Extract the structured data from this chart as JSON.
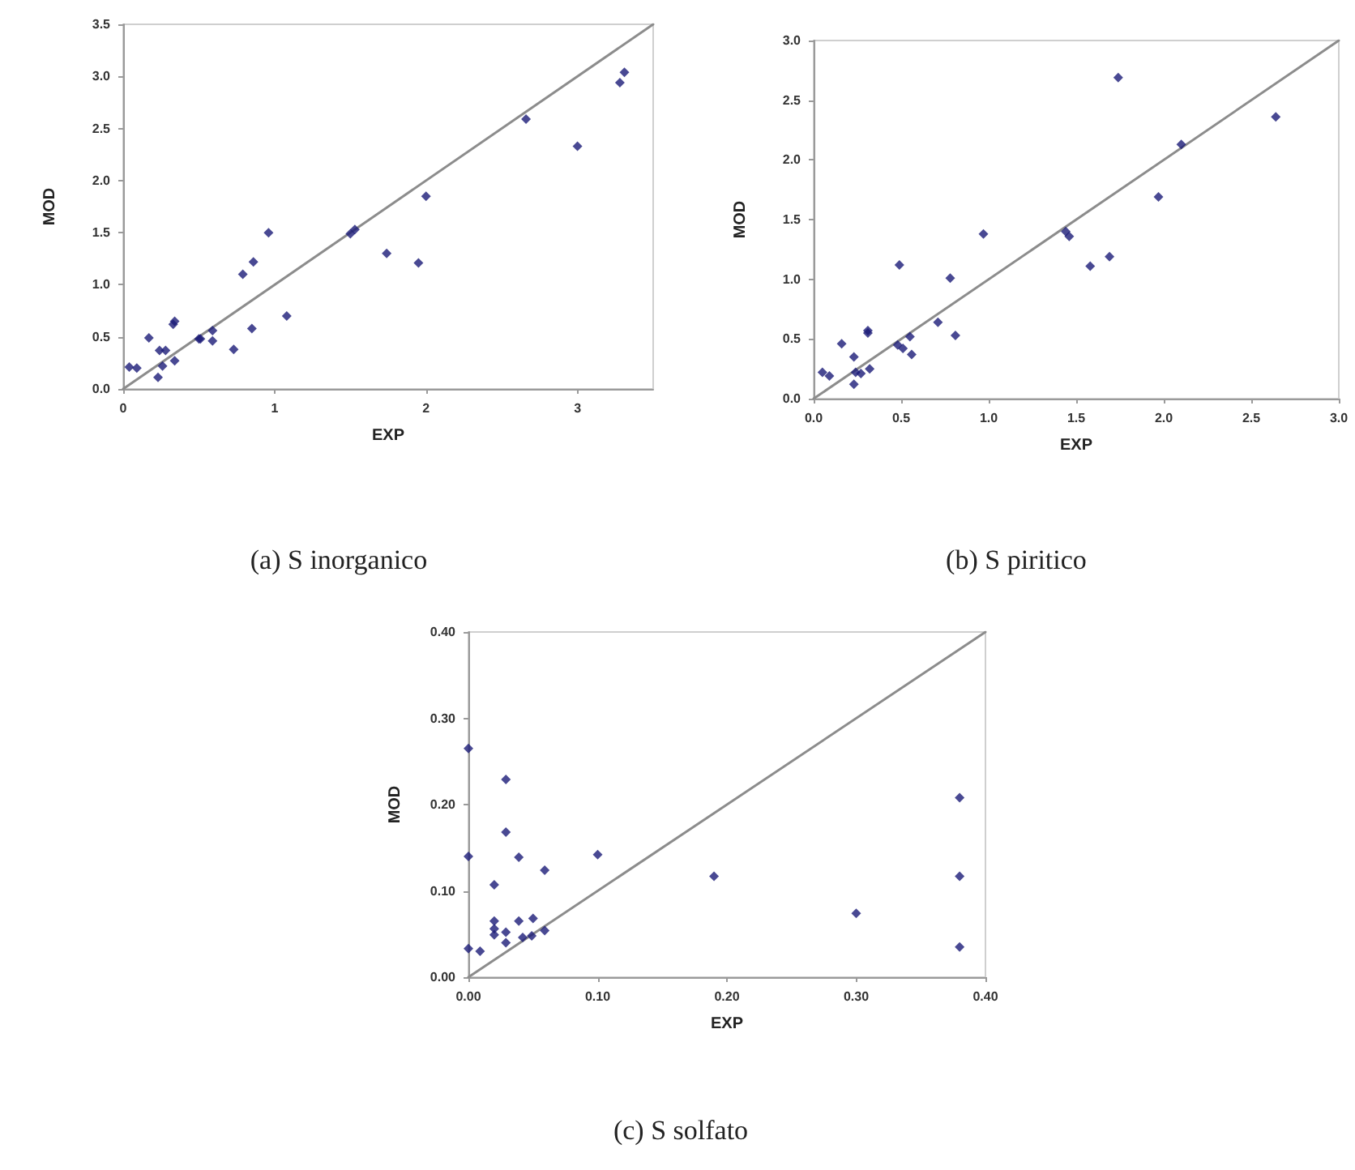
{
  "chart_data": [
    {
      "type": "scatter",
      "xlabel": "EXP",
      "ylabel": "MOD",
      "annotations": [
        "(a) S inorganico"
      ],
      "grid": false,
      "xlim": [
        0,
        3.5
      ],
      "xticks": [
        0,
        1,
        2,
        3
      ],
      "ylim": [
        0,
        3.5
      ],
      "yticks": [
        {
          "value": 0,
          "label": "0.0"
        },
        {
          "value": 0.5,
          "label": "0.5"
        },
        {
          "value": 1,
          "label": "1.0"
        },
        {
          "value": 1.5,
          "label": "1.5"
        },
        {
          "value": 2,
          "label": "2.0"
        },
        {
          "value": 2.5,
          "label": "2.5"
        },
        {
          "value": 3,
          "label": "3.0"
        },
        {
          "value": 3.5,
          "label": "3.5"
        }
      ],
      "series": [
        {
          "marker": "diamond",
          "color": "#1c1c78",
          "x": [
            0.04,
            0.09,
            0.17,
            0.23,
            0.24,
            0.28,
            0.26,
            0.33,
            0.34,
            0.34,
            0.5,
            0.51,
            0.59,
            0.59,
            0.73,
            0.79,
            0.85,
            0.86,
            0.96,
            1.08,
            1.5,
            1.53,
            1.74,
            1.95,
            2.0,
            2.66,
            3.0,
            3.28,
            3.31
          ],
          "values": [
            0.21,
            0.2,
            0.49,
            0.11,
            0.37,
            0.37,
            0.22,
            0.62,
            0.65,
            0.27,
            0.48,
            0.48,
            0.56,
            0.46,
            0.38,
            1.1,
            0.58,
            1.22,
            1.5,
            0.7,
            1.49,
            1.53,
            1.3,
            1.21,
            1.85,
            2.59,
            2.33,
            2.94,
            3.04
          ]
        },
        {
          "type": "line",
          "marker": "none",
          "color": "#8c8c8c",
          "x": [
            0,
            3.5
          ],
          "values": [
            0,
            3.5
          ]
        }
      ]
    },
    {
      "type": "scatter",
      "xlabel": "EXP",
      "ylabel": "MOD",
      "annotations": [
        "(b) S piritico"
      ],
      "grid": false,
      "xlim": [
        0,
        3
      ],
      "xticks": [
        {
          "value": 0,
          "label": "0.0"
        },
        {
          "value": 0.5,
          "label": "0.5"
        },
        {
          "value": 1,
          "label": "1.0"
        },
        {
          "value": 1.5,
          "label": "1.5"
        },
        {
          "value": 2,
          "label": "2.0"
        },
        {
          "value": 2.5,
          "label": "2.5"
        },
        {
          "value": 3,
          "label": "3.0"
        }
      ],
      "ylim": [
        0,
        3
      ],
      "yticks": [
        {
          "value": 0,
          "label": "0.0"
        },
        {
          "value": 0.5,
          "label": "0.5"
        },
        {
          "value": 1,
          "label": "1.0"
        },
        {
          "value": 1.5,
          "label": "1.5"
        },
        {
          "value": 2,
          "label": "2.0"
        },
        {
          "value": 2.5,
          "label": "2.5"
        },
        {
          "value": 3,
          "label": "3.0"
        }
      ],
      "series": [
        {
          "marker": "diamond",
          "color": "#1c1c78",
          "x": [
            0.05,
            0.09,
            0.16,
            0.23,
            0.23,
            0.24,
            0.27,
            0.31,
            0.31,
            0.32,
            0.49,
            0.48,
            0.51,
            0.55,
            0.56,
            0.71,
            0.78,
            0.81,
            0.97,
            1.44,
            1.46,
            1.58,
            1.69,
            1.74,
            1.97,
            2.1,
            2.64
          ],
          "values": [
            0.22,
            0.19,
            0.46,
            0.35,
            0.12,
            0.22,
            0.21,
            0.57,
            0.55,
            0.25,
            1.12,
            0.45,
            0.42,
            0.52,
            0.37,
            0.64,
            1.01,
            0.53,
            1.38,
            1.4,
            1.36,
            1.11,
            1.19,
            2.69,
            1.69,
            2.13,
            2.36
          ]
        },
        {
          "type": "line",
          "marker": "none",
          "color": "#8c8c8c",
          "x": [
            0,
            3
          ],
          "values": [
            0,
            3
          ]
        }
      ]
    },
    {
      "type": "scatter",
      "xlabel": "EXP",
      "ylabel": "MOD",
      "annotations": [
        "(c) S solfato"
      ],
      "grid": false,
      "xlim": [
        0,
        0.4
      ],
      "xticks": [
        {
          "value": 0,
          "label": "0.00"
        },
        {
          "value": 0.1,
          "label": "0.10"
        },
        {
          "value": 0.2,
          "label": "0.20"
        },
        {
          "value": 0.3,
          "label": "0.30"
        },
        {
          "value": 0.4,
          "label": "0.40"
        }
      ],
      "ylim": [
        0,
        0.4
      ],
      "yticks": [
        {
          "value": 0,
          "label": "0.00"
        },
        {
          "value": 0.1,
          "label": "0.10"
        },
        {
          "value": 0.2,
          "label": "0.20"
        },
        {
          "value": 0.3,
          "label": "0.30"
        },
        {
          "value": 0.4,
          "label": "0.40"
        }
      ],
      "series": [
        {
          "marker": "diamond",
          "color": "#1c1c78",
          "x": [
            0.0,
            0.0,
            0.0,
            0.009,
            0.02,
            0.02,
            0.02,
            0.02,
            0.029,
            0.029,
            0.029,
            0.029,
            0.039,
            0.039,
            0.042,
            0.05,
            0.049,
            0.059,
            0.059,
            0.1,
            0.19,
            0.3,
            0.38,
            0.38,
            0.38
          ],
          "values": [
            0.265,
            0.14,
            0.033,
            0.03,
            0.107,
            0.065,
            0.056,
            0.049,
            0.229,
            0.168,
            0.052,
            0.04,
            0.139,
            0.065,
            0.046,
            0.068,
            0.048,
            0.124,
            0.054,
            0.142,
            0.117,
            0.074,
            0.208,
            0.117,
            0.035
          ]
        },
        {
          "type": "line",
          "marker": "none",
          "color": "#8c8c8c",
          "x": [
            0,
            0.4
          ],
          "values": [
            0,
            0.4
          ]
        }
      ]
    }
  ]
}
